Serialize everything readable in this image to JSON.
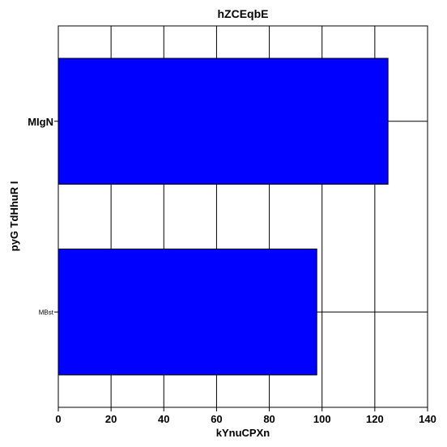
{
  "chart_data": {
    "type": "bar",
    "orientation": "horizontal",
    "title": "hZCEqbE",
    "xlabel": "kYnuCPXn",
    "ylabel": "pyG TdHhuR I",
    "categories": [
      "MIgN",
      "MBst"
    ],
    "values": [
      125,
      98
    ],
    "xlim": [
      0,
      140
    ],
    "xticks": [
      0,
      20,
      40,
      60,
      80,
      100,
      120,
      140
    ],
    "grid": true,
    "legend": "none",
    "colors": {
      "bar": "#0000ff",
      "bar_edge": "#000000",
      "grid": "#000000"
    }
  }
}
